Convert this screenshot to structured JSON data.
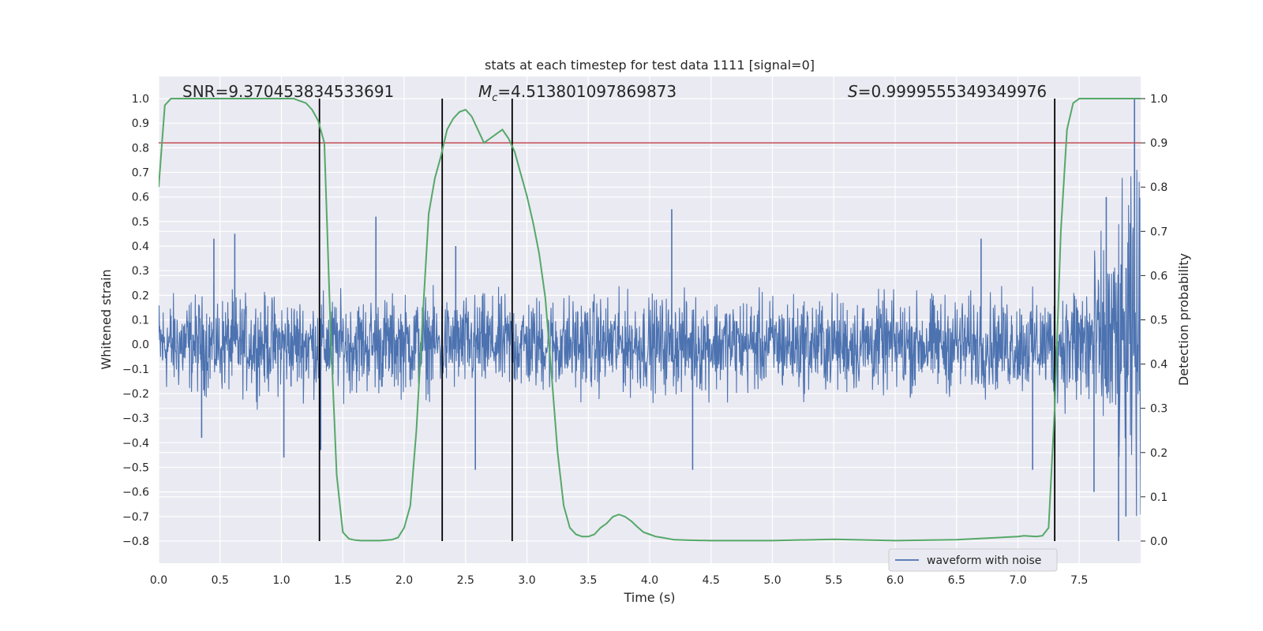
{
  "chart_data": {
    "type": "line",
    "title": "stats at each timestep for test data 1111 [signal=0]",
    "xlabel": "Time (s)",
    "ylabel_left": "Whitened strain",
    "ylabel_right": "Detection probability",
    "xlim": [
      0.0,
      8.0
    ],
    "ylim_left": [
      -0.89,
      1.09
    ],
    "ylim_right": [
      -0.05,
      1.05
    ],
    "x_ticks": [
      "0.0",
      "0.5",
      "1.0",
      "1.5",
      "2.0",
      "2.5",
      "3.0",
      "3.5",
      "4.0",
      "4.5",
      "5.0",
      "5.5",
      "6.0",
      "6.5",
      "7.0",
      "7.5"
    ],
    "y_ticks_left": [
      "1.0",
      "0.9",
      "0.8",
      "0.7",
      "0.6",
      "0.5",
      "0.4",
      "0.3",
      "0.2",
      "0.1",
      "0.0",
      "−0.1",
      "−0.2",
      "−0.3",
      "−0.4",
      "−0.5",
      "−0.6",
      "−0.7",
      "−0.8"
    ],
    "y_ticks_right": [
      "1.0",
      "0.9",
      "0.8",
      "0.7",
      "0.6",
      "0.5",
      "0.4",
      "0.3",
      "0.2",
      "0.1",
      "0.0"
    ],
    "grid": true,
    "annotations": {
      "snr_label": "SNR",
      "snr_value": "=9.370453834533691",
      "mc_label_main": "M",
      "mc_label_sub": "c",
      "mc_value": "=4.513801097869873",
      "s_label": "S",
      "s_value": "=0.9999555349349976"
    },
    "legend": {
      "label": "waveform with noise",
      "position": "lower-right"
    },
    "threshold": {
      "axis": "right",
      "value": 0.9,
      "color": "#c44e52"
    },
    "vertical_markers": {
      "x": [
        1.31,
        2.31,
        2.88,
        7.3
      ],
      "ymin_left": -0.8,
      "ymax_left": 1.0,
      "color": "#000000"
    },
    "series": [
      {
        "name": "waveform with noise",
        "axis": "left",
        "color": "#4c72b0",
        "noise_envelope": {
          "x": [
            0.0,
            7.2,
            7.4,
            7.6,
            7.8,
            7.95
          ],
          "amplitude": [
            0.28,
            0.28,
            0.35,
            0.5,
            0.7,
            0.95
          ]
        },
        "spikes": [
          [
            0.35,
            -0.38
          ],
          [
            0.45,
            0.43
          ],
          [
            0.62,
            0.45
          ],
          [
            1.02,
            -0.46
          ],
          [
            1.77,
            0.52
          ],
          [
            1.32,
            -0.43
          ],
          [
            2.42,
            0.4
          ],
          [
            2.58,
            -0.51
          ],
          [
            4.18,
            0.55
          ],
          [
            4.35,
            -0.51
          ],
          [
            6.7,
            0.43
          ],
          [
            7.12,
            -0.51
          ],
          [
            7.95,
            1.0
          ],
          [
            7.82,
            -0.8
          ],
          [
            7.62,
            -0.6
          ],
          [
            7.72,
            0.6
          ],
          [
            7.88,
            -0.7
          ]
        ]
      },
      {
        "name": "detection probability",
        "axis": "right",
        "color": "#55a868",
        "x": [
          0.0,
          0.05,
          0.1,
          0.15,
          0.2,
          0.4,
          0.6,
          0.8,
          1.0,
          1.1,
          1.15,
          1.2,
          1.25,
          1.3,
          1.35,
          1.4,
          1.45,
          1.5,
          1.55,
          1.6,
          1.65,
          1.7,
          1.8,
          1.9,
          1.95,
          2.0,
          2.05,
          2.1,
          2.15,
          2.2,
          2.25,
          2.3,
          2.35,
          2.4,
          2.45,
          2.5,
          2.55,
          2.6,
          2.65,
          2.7,
          2.75,
          2.8,
          2.85,
          2.9,
          2.95,
          3.0,
          3.05,
          3.1,
          3.15,
          3.2,
          3.25,
          3.3,
          3.35,
          3.4,
          3.45,
          3.5,
          3.55,
          3.6,
          3.65,
          3.7,
          3.75,
          3.8,
          3.85,
          3.9,
          3.95,
          4.0,
          4.05,
          4.1,
          4.2,
          4.3,
          4.5,
          5.0,
          5.5,
          6.0,
          6.5,
          7.0,
          7.05,
          7.1,
          7.15,
          7.2,
          7.25,
          7.3,
          7.35,
          7.4,
          7.45,
          7.5,
          8.0
        ],
        "y": [
          0.8,
          0.985,
          1.0,
          1.0,
          1.0,
          1.0,
          1.0,
          1.0,
          1.0,
          1.0,
          0.995,
          0.99,
          0.975,
          0.95,
          0.9,
          0.48,
          0.15,
          0.02,
          0.005,
          0.002,
          0.001,
          0.001,
          0.001,
          0.003,
          0.008,
          0.03,
          0.08,
          0.25,
          0.5,
          0.74,
          0.82,
          0.87,
          0.93,
          0.955,
          0.97,
          0.975,
          0.96,
          0.93,
          0.9,
          0.91,
          0.92,
          0.93,
          0.91,
          0.88,
          0.83,
          0.78,
          0.72,
          0.65,
          0.55,
          0.38,
          0.2,
          0.08,
          0.03,
          0.015,
          0.01,
          0.01,
          0.015,
          0.03,
          0.04,
          0.055,
          0.06,
          0.055,
          0.045,
          0.032,
          0.02,
          0.015,
          0.01,
          0.008,
          0.003,
          0.002,
          0.001,
          0.001,
          0.004,
          0.001,
          0.003,
          0.01,
          0.012,
          0.011,
          0.01,
          0.012,
          0.03,
          0.3,
          0.7,
          0.93,
          0.99,
          1.0,
          1.0
        ]
      }
    ]
  }
}
